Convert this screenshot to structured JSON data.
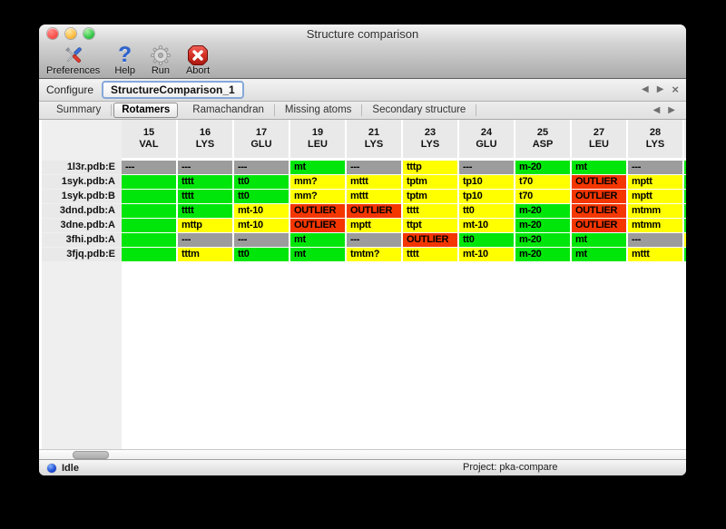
{
  "window": {
    "title": "Structure comparison"
  },
  "toolbar": {
    "items": [
      {
        "label": "Preferences",
        "icon": "tools-icon"
      },
      {
        "label": "Help",
        "icon": "question-icon"
      },
      {
        "label": "Run",
        "icon": "gear-icon"
      },
      {
        "label": "Abort",
        "icon": "stop-icon"
      }
    ]
  },
  "configure": {
    "label": "Configure",
    "value": "StructureComparison_1",
    "nav": {
      "prev": "◀",
      "next": "▶",
      "close": "×"
    }
  },
  "tabs": {
    "selected": "Rotamers",
    "items": [
      {
        "label": "Summary"
      },
      {
        "label": "Rotamers"
      },
      {
        "label": "Ramachandran"
      },
      {
        "label": "Missing atoms"
      },
      {
        "label": "Secondary structure"
      }
    ],
    "nav": {
      "prev": "◀",
      "next": "▶"
    }
  },
  "table": {
    "colors": {
      "green": "#00E60A",
      "yellow": "#FFFF00",
      "red": "#F43600",
      "gray": "#9C9C9C"
    },
    "columns": [
      {
        "num": "15",
        "res": "VAL"
      },
      {
        "num": "16",
        "res": "LYS"
      },
      {
        "num": "17",
        "res": "GLU"
      },
      {
        "num": "19",
        "res": "LEU"
      },
      {
        "num": "21",
        "res": "LYS"
      },
      {
        "num": "23",
        "res": "LYS"
      },
      {
        "num": "24",
        "res": "GLU"
      },
      {
        "num": "25",
        "res": "ASP"
      },
      {
        "num": "27",
        "res": "LEU"
      },
      {
        "num": "28",
        "res": "LYS"
      }
    ],
    "rows": [
      {
        "label": "1l3r.pdb:E",
        "cells": [
          {
            "text": "---",
            "color": "gray"
          },
          {
            "text": "---",
            "color": "gray"
          },
          {
            "text": "---",
            "color": "gray"
          },
          {
            "text": "mt",
            "color": "green"
          },
          {
            "text": "---",
            "color": "gray"
          },
          {
            "text": "tttp",
            "color": "yellow"
          },
          {
            "text": "---",
            "color": "gray"
          },
          {
            "text": "m-20",
            "color": "green"
          },
          {
            "text": "mt",
            "color": "green"
          },
          {
            "text": "---",
            "color": "gray"
          }
        ]
      },
      {
        "label": "1syk.pdb:A",
        "cells": [
          {
            "text": "",
            "color": "green"
          },
          {
            "text": "tttt",
            "color": "green"
          },
          {
            "text": "tt0",
            "color": "green"
          },
          {
            "text": "mm?",
            "color": "yellow"
          },
          {
            "text": "mttt",
            "color": "yellow"
          },
          {
            "text": "tptm",
            "color": "yellow"
          },
          {
            "text": "tp10",
            "color": "yellow"
          },
          {
            "text": "t70",
            "color": "yellow"
          },
          {
            "text": "OUTLIER",
            "color": "red"
          },
          {
            "text": "mptt",
            "color": "yellow"
          }
        ]
      },
      {
        "label": "1syk.pdb:B",
        "cells": [
          {
            "text": "",
            "color": "green"
          },
          {
            "text": "tttt",
            "color": "green"
          },
          {
            "text": "tt0",
            "color": "green"
          },
          {
            "text": "mm?",
            "color": "yellow"
          },
          {
            "text": "mttt",
            "color": "yellow"
          },
          {
            "text": "tptm",
            "color": "yellow"
          },
          {
            "text": "tp10",
            "color": "yellow"
          },
          {
            "text": "t70",
            "color": "yellow"
          },
          {
            "text": "OUTLIER",
            "color": "red"
          },
          {
            "text": "mptt",
            "color": "yellow"
          }
        ]
      },
      {
        "label": "3dnd.pdb:A",
        "cells": [
          {
            "text": "",
            "color": "green"
          },
          {
            "text": "tttt",
            "color": "green"
          },
          {
            "text": "mt-10",
            "color": "yellow"
          },
          {
            "text": "OUTLIER",
            "color": "red"
          },
          {
            "text": "OUTLIER",
            "color": "red"
          },
          {
            "text": "tttt",
            "color": "yellow"
          },
          {
            "text": "tt0",
            "color": "yellow"
          },
          {
            "text": "m-20",
            "color": "green"
          },
          {
            "text": "OUTLIER",
            "color": "red"
          },
          {
            "text": "mtmm",
            "color": "yellow"
          }
        ]
      },
      {
        "label": "3dne.pdb:A",
        "cells": [
          {
            "text": "",
            "color": "green"
          },
          {
            "text": "mttp",
            "color": "yellow"
          },
          {
            "text": "mt-10",
            "color": "yellow"
          },
          {
            "text": "OUTLIER",
            "color": "red"
          },
          {
            "text": "mptt",
            "color": "yellow"
          },
          {
            "text": "ttpt",
            "color": "yellow"
          },
          {
            "text": "mt-10",
            "color": "yellow"
          },
          {
            "text": "m-20",
            "color": "green"
          },
          {
            "text": "OUTLIER",
            "color": "red"
          },
          {
            "text": "mtmm",
            "color": "yellow"
          }
        ]
      },
      {
        "label": "3fhi.pdb:A",
        "cells": [
          {
            "text": "",
            "color": "green"
          },
          {
            "text": "---",
            "color": "gray"
          },
          {
            "text": "---",
            "color": "gray"
          },
          {
            "text": "mt",
            "color": "green"
          },
          {
            "text": "---",
            "color": "gray"
          },
          {
            "text": "OUTLIER",
            "color": "red"
          },
          {
            "text": "tt0",
            "color": "green"
          },
          {
            "text": "m-20",
            "color": "green"
          },
          {
            "text": "mt",
            "color": "green"
          },
          {
            "text": "---",
            "color": "gray"
          }
        ]
      },
      {
        "label": "3fjq.pdb:E",
        "cells": [
          {
            "text": "",
            "color": "green"
          },
          {
            "text": "tttm",
            "color": "yellow"
          },
          {
            "text": "tt0",
            "color": "green"
          },
          {
            "text": "mt",
            "color": "green"
          },
          {
            "text": "tmtm?",
            "color": "yellow"
          },
          {
            "text": "tttt",
            "color": "yellow"
          },
          {
            "text": "mt-10",
            "color": "yellow"
          },
          {
            "text": "m-20",
            "color": "green"
          },
          {
            "text": "mt",
            "color": "green"
          },
          {
            "text": "mttt",
            "color": "yellow"
          }
        ]
      }
    ],
    "partial_column": {
      "colors": [
        "green",
        "green",
        "green",
        "green",
        "green",
        "yellow",
        "green"
      ]
    }
  },
  "statusbar": {
    "status": "Idle",
    "project": "Project: pka-compare"
  }
}
